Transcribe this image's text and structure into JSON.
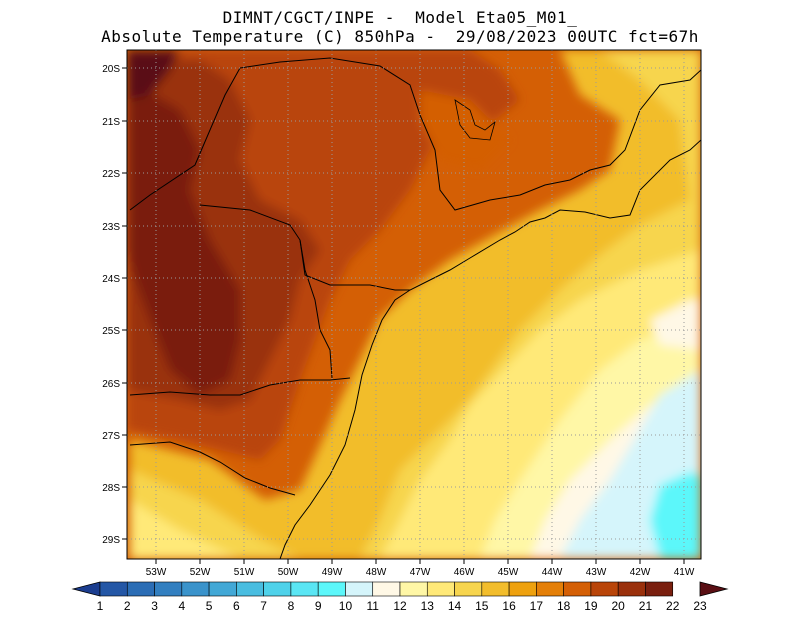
{
  "header": {
    "line1": "DIMNT/CGCT/INPE -  Model Eta05_M01_",
    "line2": "Absolute Temperature (C) 850hPa -  29/08/2023 00UTC fct=67h"
  },
  "map": {
    "lat_labels": [
      "20S",
      "21S",
      "22S",
      "23S",
      "24S",
      "25S",
      "26S",
      "27S",
      "28S",
      "29S"
    ],
    "lon_labels": [
      "53W",
      "52W",
      "51W",
      "50W",
      "49W",
      "48W",
      "47W",
      "46W",
      "45W",
      "44W",
      "43W",
      "42W",
      "41W"
    ]
  },
  "colorbar": {
    "labels": [
      "1",
      "2",
      "3",
      "4",
      "5",
      "6",
      "7",
      "8",
      "9",
      "10",
      "11",
      "12",
      "13",
      "14",
      "15",
      "16",
      "17",
      "18",
      "19",
      "20",
      "21",
      "22",
      "23"
    ],
    "colors": [
      "#1b3d8f",
      "#2457a6",
      "#2b6db5",
      "#327fc0",
      "#3a93cb",
      "#42a8d6",
      "#49bde0",
      "#4fd2ea",
      "#5ae6f4",
      "#5cf7fa",
      "#d5f5fb",
      "#fff8e6",
      "#fff7a6",
      "#ffe978",
      "#f7d54e",
      "#f2bd2c",
      "#eea10e",
      "#e47f08",
      "#d45f05",
      "#b94509",
      "#9a300c",
      "#7a1f0f",
      "#5a0f14"
    ]
  }
}
